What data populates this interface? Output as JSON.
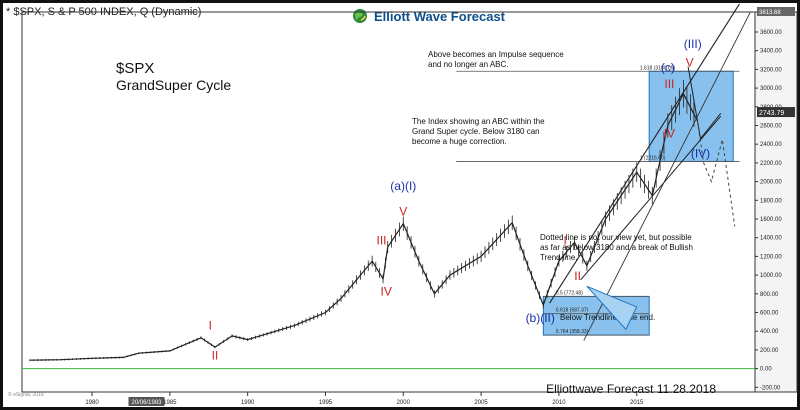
{
  "header": {
    "title": "* $SPX, S & P 500 INDEX, Q (Dynamic)",
    "brand": "Elliott Wave Forecast",
    "footer_stamp": "Elliottwave Forecast 11.28.2018",
    "tiny_note": "© eSignal, 2018"
  },
  "chart_data": {
    "type": "candlestick",
    "title": "$SPX",
    "subtitle": "GrandSuper Cycle",
    "x_axis": {
      "ticks": [
        "1980",
        "1985",
        "1990",
        "1995",
        "2000",
        "2005",
        "2010",
        "2015"
      ],
      "tick_years": [
        1980,
        1985,
        1990,
        1995,
        2000,
        2005,
        2010,
        2015
      ],
      "cursor_label": "20/06/1983",
      "range": [
        1975.5,
        2022.6
      ]
    },
    "y_axis": {
      "ticks": [
        "3600.00",
        "3400.00",
        "3200.00",
        "3000.00",
        "2800.00",
        "2600.00",
        "2400.00",
        "2200.00",
        "2000.00",
        "1800.00",
        "1600.00",
        "1400.00",
        "1200.00",
        "1000.00",
        "800.00",
        "600.00",
        "400.00",
        "200.00",
        "0.00",
        "-200.00"
      ],
      "tick_values": [
        3600,
        3400,
        3200,
        3000,
        2800,
        2600,
        2400,
        2200,
        2000,
        1800,
        1600,
        1400,
        1200,
        1000,
        800,
        600,
        400,
        200,
        0,
        -200
      ],
      "top_label": "3813.68",
      "last_price": "2743.79",
      "range": [
        -250,
        3813.68
      ],
      "position": "right"
    },
    "price_path": [
      [
        1976,
        90
      ],
      [
        1978,
        95
      ],
      [
        1980,
        110
      ],
      [
        1982,
        120
      ],
      [
        1983,
        165
      ],
      [
        1985,
        190
      ],
      [
        1987,
        330
      ],
      [
        1987.9,
        230
      ],
      [
        1989,
        350
      ],
      [
        1990,
        310
      ],
      [
        1993,
        460
      ],
      [
        1995,
        600
      ],
      [
        1996,
        750
      ],
      [
        1997,
        950
      ],
      [
        1998,
        1150
      ],
      [
        1998.7,
        960
      ],
      [
        1999,
        1300
      ],
      [
        2000,
        1550
      ],
      [
        2001,
        1150
      ],
      [
        2002,
        800
      ],
      [
        2003,
        1000
      ],
      [
        2005,
        1200
      ],
      [
        2007,
        1560
      ],
      [
        2008,
        1100
      ],
      [
        2009,
        680
      ],
      [
        2010,
        1150
      ],
      [
        2011,
        1350
      ],
      [
        2011.8,
        1100
      ],
      [
        2013,
        1600
      ],
      [
        2015,
        2100
      ],
      [
        2016,
        1850
      ],
      [
        2017,
        2600
      ],
      [
        2018,
        2940
      ],
      [
        2018.9,
        2650
      ]
    ],
    "wave_labels": [
      {
        "text": "I",
        "year": 1987.6,
        "value": 420,
        "color": "#cc2222"
      },
      {
        "text": "II",
        "year": 1987.9,
        "value": 100,
        "color": "#cc2222"
      },
      {
        "text": "III",
        "year": 1998.6,
        "value": 1330,
        "color": "#cc2222"
      },
      {
        "text": "IV",
        "year": 1998.9,
        "value": 780,
        "color": "#cc2222"
      },
      {
        "text": "V",
        "year": 2000.0,
        "value": 1640,
        "color": "#cc2222"
      },
      {
        "text": "(a)(I)",
        "year": 2000.0,
        "value": 1910,
        "color": "#1a2fa8"
      },
      {
        "text": "I",
        "year": 2010.4,
        "value": 1330,
        "color": "#cc2222"
      },
      {
        "text": "II",
        "year": 2011.2,
        "value": 950,
        "color": "#cc2222"
      },
      {
        "text": "(b)(II)",
        "year": 2008.8,
        "value": 500,
        "color": "#1a2fa8"
      },
      {
        "text": "III",
        "year": 2017.1,
        "value": 3000,
        "color": "#cc2222"
      },
      {
        "text": "IV",
        "year": 2017.1,
        "value": 2470,
        "color": "#cc2222"
      },
      {
        "text": "(c)",
        "year": 2017.0,
        "value": 3180,
        "color": "#1a2fa8"
      },
      {
        "text": "V",
        "year": 2018.4,
        "value": 3230,
        "color": "#cc2222"
      },
      {
        "text": "(III)",
        "year": 2018.6,
        "value": 3430,
        "color": "#1a2fa8"
      },
      {
        "text": "(IV)",
        "year": 2019.1,
        "value": 2260,
        "color": "#1a2fa8"
      }
    ],
    "fib_lines": [
      {
        "label": "1.618 (3180.05)",
        "value": 3180.05
      },
      {
        "label": "1 (2215.60)",
        "value": 2215.6
      },
      {
        "label": "0.5 (772.48)",
        "value": 772.48
      },
      {
        "label": "0.618 (587.37)",
        "value": 587.37
      },
      {
        "label": "0.764 (358.33)",
        "value": 358.33
      }
    ],
    "zones": [
      {
        "name": "upper",
        "year_range": [
          2015.8,
          2021.2
        ],
        "value_range": [
          2215.6,
          3180.05
        ]
      },
      {
        "name": "lower",
        "year_range": [
          2009.0,
          2015.8
        ],
        "value_range": [
          358.33,
          772.48
        ]
      }
    ],
    "annotations": {
      "impulse": "Above becomes an Impulse sequence\nand no longer an ABC.",
      "abc": "The Index showing an ABC within the\nGrand Super cycle. Below 3180 can\nbecome a huge correction.",
      "dotted": "Dotted line is not our view yet, but possible\nas far as below 3180 and a break of Bullish\nTrend line.",
      "trendline_end": "Below Trendline cycle end."
    },
    "colors": {
      "zone_fill": "#6ab2e8",
      "zone_edge": "#1d74c2",
      "wave_red": "#cc2222",
      "wave_blue": "#1a2fa8",
      "zero_line": "#38b838",
      "price": "#222222"
    },
    "grid": false
  }
}
